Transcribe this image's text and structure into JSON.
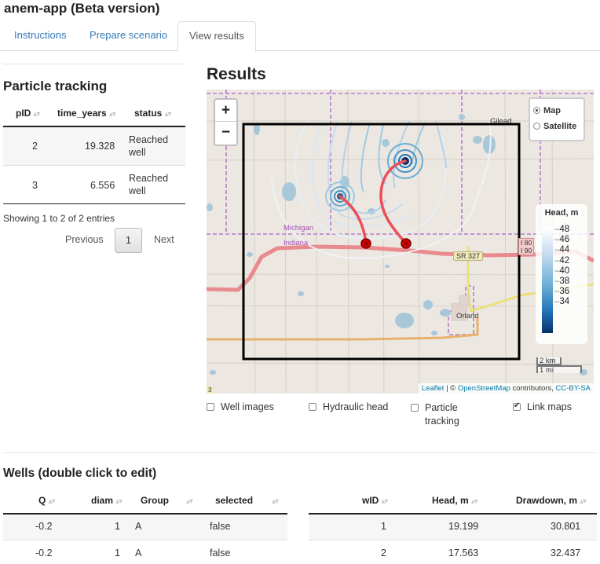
{
  "app": {
    "title": "anem-app (Beta version)"
  },
  "tabs": [
    {
      "label": "Instructions"
    },
    {
      "label": "Prepare scenario"
    },
    {
      "label": "View results"
    }
  ],
  "particle_tracking": {
    "heading": "Particle tracking",
    "columns": [
      "pID",
      "time_years",
      "status"
    ],
    "rows": [
      {
        "pID": "2",
        "time_years": "19.328",
        "status_l1": "Reached",
        "status_l2": "well"
      },
      {
        "pID": "3",
        "time_years": "6.556",
        "status_l1": "Reached",
        "status_l2": "well"
      }
    ],
    "info": "Showing 1 to 2 of 2 entries",
    "pager": {
      "previous": "Previous",
      "page": "1",
      "next": "Next"
    }
  },
  "results": {
    "heading": "Results",
    "map": {
      "zoom_in": "+",
      "zoom_out": "−",
      "layers": [
        {
          "label": "Map",
          "selected": true
        },
        {
          "label": "Satellite",
          "selected": false
        }
      ],
      "legend": {
        "title": "Head, m",
        "ticks": [
          "48",
          "46",
          "44",
          "42",
          "40",
          "38",
          "36",
          "34"
        ]
      },
      "labels": {
        "gilead": "Gilead",
        "michigan": "Michigan",
        "indiana": "Indiana",
        "orland": "Orland",
        "sr": "SR 327",
        "i80": "I 80",
        "i90": "I 90",
        "route3": "3"
      },
      "scale": {
        "km": "2 km",
        "mi": "1 mi"
      },
      "attribution": {
        "leaflet": "Leaflet",
        "sep": " | © ",
        "osm": "OpenStreetMap",
        "contrib": " contributors, ",
        "license": "CC-BY-SA"
      }
    },
    "checkboxes": [
      {
        "label": "Well images",
        "checked": false
      },
      {
        "label": "Hydraulic head",
        "checked": false
      },
      {
        "label_l1": "Particle",
        "label_l2": "tracking",
        "checked": false
      },
      {
        "label": "Link maps",
        "checked": true
      }
    ]
  },
  "wells": {
    "heading": "Wells (double click to edit)",
    "left_columns": [
      "Q",
      "diam",
      "Group",
      "selected"
    ],
    "left_rows": [
      {
        "Q": "-0.2",
        "diam": "1",
        "Group": "A",
        "selected": "false"
      },
      {
        "Q": "-0.2",
        "diam": "1",
        "Group": "A",
        "selected": "false"
      }
    ],
    "right_columns": [
      "wID",
      "Head, m",
      "Drawdown, m"
    ],
    "right_rows": [
      {
        "wID": "1",
        "head": "19.199",
        "drawdown": "30.801"
      },
      {
        "wID": "2",
        "head": "17.563",
        "drawdown": "32.437"
      }
    ]
  },
  "colors": {
    "link": "#337ab7",
    "particle_path": "#e8505b",
    "well_marker": "#cc0000",
    "boundary": "#000000"
  }
}
